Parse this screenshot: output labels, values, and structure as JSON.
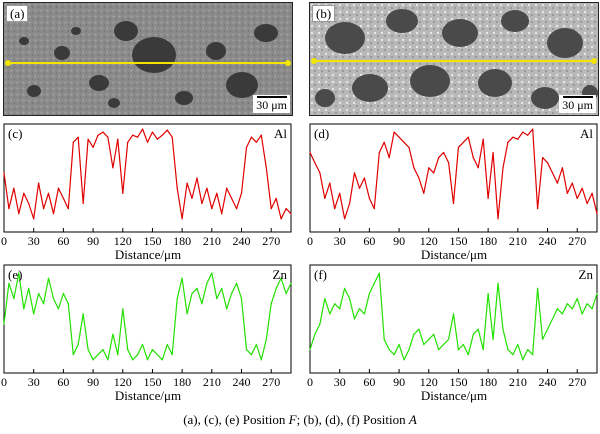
{
  "figure": {
    "caption_parts": [
      "(a), (c), (e) Position ",
      "F",
      "; (b), (d), (f) Position ",
      "A"
    ]
  },
  "images": [
    {
      "id": "a",
      "label": "(a)",
      "scale_label": "30 μm"
    },
    {
      "id": "b",
      "label": "(b)",
      "scale_label": "30 μm"
    }
  ],
  "colors": {
    "al": "#e00000",
    "zn": "#22e000",
    "scan_line": "#f2e600"
  },
  "chart_data": [
    {
      "type": "line",
      "panel": "(c)",
      "series_label": "Al",
      "color": "#e00000",
      "xlabel": "Distance/μm",
      "xlim": [
        0,
        290
      ],
      "ylim": [
        0,
        1
      ],
      "xticks": [
        0,
        30,
        60,
        90,
        120,
        150,
        180,
        210,
        240,
        270
      ],
      "x": [
        0,
        5,
        10,
        15,
        20,
        25,
        30,
        35,
        40,
        45,
        50,
        55,
        60,
        65,
        70,
        75,
        80,
        85,
        90,
        95,
        100,
        105,
        110,
        115,
        120,
        125,
        130,
        135,
        140,
        145,
        150,
        155,
        160,
        165,
        170,
        175,
        180,
        185,
        190,
        195,
        200,
        205,
        210,
        215,
        220,
        225,
        230,
        235,
        240,
        245,
        250,
        255,
        260,
        265,
        270,
        275,
        280,
        285,
        290
      ],
      "values": [
        0.55,
        0.2,
        0.4,
        0.15,
        0.35,
        0.25,
        0.1,
        0.45,
        0.2,
        0.35,
        0.15,
        0.4,
        0.3,
        0.2,
        0.85,
        0.9,
        0.25,
        0.88,
        0.8,
        0.92,
        0.95,
        0.9,
        0.6,
        0.88,
        0.35,
        0.85,
        0.92,
        0.9,
        0.98,
        0.85,
        0.95,
        0.88,
        0.92,
        0.97,
        0.9,
        0.4,
        0.1,
        0.45,
        0.3,
        0.5,
        0.25,
        0.4,
        0.2,
        0.35,
        0.15,
        0.4,
        0.3,
        0.2,
        0.35,
        0.8,
        0.9,
        0.85,
        0.92,
        0.6,
        0.2,
        0.3,
        0.1,
        0.2,
        0.15
      ]
    },
    {
      "type": "line",
      "panel": "(d)",
      "series_label": "Al",
      "color": "#e00000",
      "xlabel": "Distance/μm",
      "xlim": [
        0,
        290
      ],
      "ylim": [
        0,
        1
      ],
      "xticks": [
        0,
        30,
        60,
        90,
        120,
        150,
        180,
        210,
        240,
        270
      ],
      "x": [
        0,
        5,
        10,
        15,
        20,
        25,
        30,
        35,
        40,
        45,
        50,
        55,
        60,
        65,
        70,
        75,
        80,
        85,
        90,
        95,
        100,
        105,
        110,
        115,
        120,
        125,
        130,
        135,
        140,
        145,
        150,
        155,
        160,
        165,
        170,
        175,
        180,
        185,
        190,
        195,
        200,
        205,
        210,
        215,
        220,
        225,
        230,
        235,
        240,
        245,
        250,
        255,
        260,
        265,
        270,
        275,
        280,
        285,
        290
      ],
      "values": [
        0.75,
        0.65,
        0.55,
        0.3,
        0.45,
        0.2,
        0.35,
        0.1,
        0.25,
        0.55,
        0.4,
        0.5,
        0.3,
        0.2,
        0.75,
        0.85,
        0.7,
        0.95,
        0.9,
        0.85,
        0.8,
        0.6,
        0.5,
        0.35,
        0.6,
        0.55,
        0.7,
        0.75,
        0.65,
        0.25,
        0.8,
        0.85,
        0.9,
        0.7,
        0.6,
        0.88,
        0.3,
        0.75,
        0.1,
        0.6,
        0.85,
        0.9,
        0.88,
        0.95,
        0.92,
        0.98,
        0.2,
        0.7,
        0.65,
        0.55,
        0.45,
        0.6,
        0.35,
        0.45,
        0.3,
        0.4,
        0.25,
        0.35,
        0.15
      ]
    },
    {
      "type": "line",
      "panel": "(e)",
      "series_label": "Zn",
      "color": "#22e000",
      "xlabel": "Distance/μm",
      "xlim": [
        0,
        290
      ],
      "ylim": [
        0,
        1
      ],
      "xticks": [
        0,
        30,
        60,
        90,
        120,
        150,
        180,
        210,
        240,
        270
      ],
      "x": [
        0,
        5,
        10,
        15,
        20,
        25,
        30,
        35,
        40,
        45,
        50,
        55,
        60,
        65,
        70,
        75,
        80,
        85,
        90,
        95,
        100,
        105,
        110,
        115,
        120,
        125,
        130,
        135,
        140,
        145,
        150,
        155,
        160,
        165,
        170,
        175,
        180,
        185,
        190,
        195,
        200,
        205,
        210,
        215,
        220,
        225,
        230,
        235,
        240,
        245,
        250,
        255,
        260,
        265,
        270,
        275,
        280,
        285,
        290
      ],
      "values": [
        0.45,
        0.85,
        0.7,
        0.95,
        0.6,
        0.8,
        0.55,
        0.75,
        0.65,
        0.9,
        0.7,
        0.6,
        0.75,
        0.65,
        0.15,
        0.25,
        0.55,
        0.2,
        0.1,
        0.15,
        0.2,
        0.1,
        0.35,
        0.15,
        0.6,
        0.2,
        0.1,
        0.15,
        0.25,
        0.1,
        0.2,
        0.15,
        0.1,
        0.25,
        0.15,
        0.7,
        0.9,
        0.55,
        0.75,
        0.8,
        0.65,
        0.85,
        0.95,
        0.7,
        0.8,
        0.6,
        0.75,
        0.85,
        0.7,
        0.2,
        0.15,
        0.25,
        0.1,
        0.3,
        0.65,
        0.8,
        0.9,
        0.75,
        0.85
      ]
    },
    {
      "type": "line",
      "panel": "(f)",
      "series_label": "Zn",
      "color": "#22e000",
      "xlabel": "Distance/μm",
      "xlim": [
        0,
        290
      ],
      "ylim": [
        0,
        1
      ],
      "xticks": [
        0,
        30,
        60,
        90,
        120,
        150,
        180,
        210,
        240,
        270
      ],
      "x": [
        0,
        5,
        10,
        15,
        20,
        25,
        30,
        35,
        40,
        45,
        50,
        55,
        60,
        65,
        70,
        75,
        80,
        85,
        90,
        95,
        100,
        105,
        110,
        115,
        120,
        125,
        130,
        135,
        140,
        145,
        150,
        155,
        160,
        165,
        170,
        175,
        180,
        185,
        190,
        195,
        200,
        205,
        210,
        215,
        220,
        225,
        230,
        235,
        240,
        245,
        250,
        255,
        260,
        265,
        270,
        275,
        280,
        285,
        290
      ],
      "values": [
        0.2,
        0.35,
        0.45,
        0.7,
        0.55,
        0.65,
        0.6,
        0.8,
        0.7,
        0.5,
        0.6,
        0.55,
        0.75,
        0.85,
        0.95,
        0.3,
        0.2,
        0.15,
        0.25,
        0.1,
        0.2,
        0.35,
        0.4,
        0.25,
        0.3,
        0.35,
        0.2,
        0.25,
        0.3,
        0.55,
        0.2,
        0.25,
        0.15,
        0.35,
        0.4,
        0.2,
        0.75,
        0.3,
        0.85,
        0.4,
        0.2,
        0.15,
        0.25,
        0.1,
        0.2,
        0.15,
        0.8,
        0.3,
        0.4,
        0.5,
        0.6,
        0.55,
        0.65,
        0.6,
        0.7,
        0.55,
        0.65,
        0.6,
        0.75
      ]
    }
  ]
}
